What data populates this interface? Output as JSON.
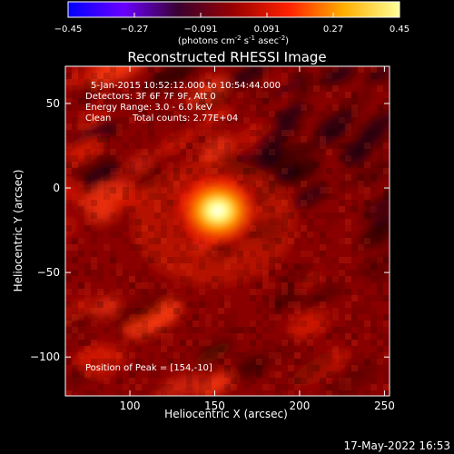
{
  "colorbar": {
    "ticks": [
      "-0.45",
      "-0.27",
      "-0.091",
      "0.091",
      "0.27",
      "0.45"
    ],
    "units_label": "(photons cm",
    "units_exp1": "-2",
    "units_mid": " s",
    "units_exp2": "-1",
    "units_tail": " asec",
    "units_exp3": "-2",
    "units_close": ")",
    "stops": [
      "#0000ff",
      "#6a00ff",
      "#3a0030",
      "#9a0000",
      "#ff2200",
      "#ffb000",
      "#ffff99"
    ]
  },
  "title": "Reconstructed RHESSI Image",
  "info": {
    "line1": "5-Jan-2015 10:52:12.000 to 10:54:44.000",
    "line2": "Detectors: 3F 6F 7F 9F, Att 0",
    "line3": "Energy Range: 3.0 - 6.0 keV",
    "line4a": "Clean",
    "line4b": "Total counts: 2.77E+04",
    "peak": "Position of Peak = [154,-10]"
  },
  "axes": {
    "xlabel": "Heliocentric X (arcsec)",
    "ylabel": "Heliocentric Y (arcsec)",
    "xticks": [
      {
        "value": 100,
        "label": "100"
      },
      {
        "value": 150,
        "label": "150"
      },
      {
        "value": 200,
        "label": "200"
      },
      {
        "value": 250,
        "label": "250"
      }
    ],
    "yticks": [
      {
        "value": 50,
        "label": "50"
      },
      {
        "value": 0,
        "label": "0"
      },
      {
        "value": -50,
        "label": "-50"
      },
      {
        "value": -100,
        "label": "-100"
      }
    ],
    "xlim": [
      62,
      253
    ],
    "ylim": [
      -123,
      72
    ]
  },
  "peak_position": [
    154,
    -10
  ],
  "timestamp": "17-May-2022 16:53"
}
